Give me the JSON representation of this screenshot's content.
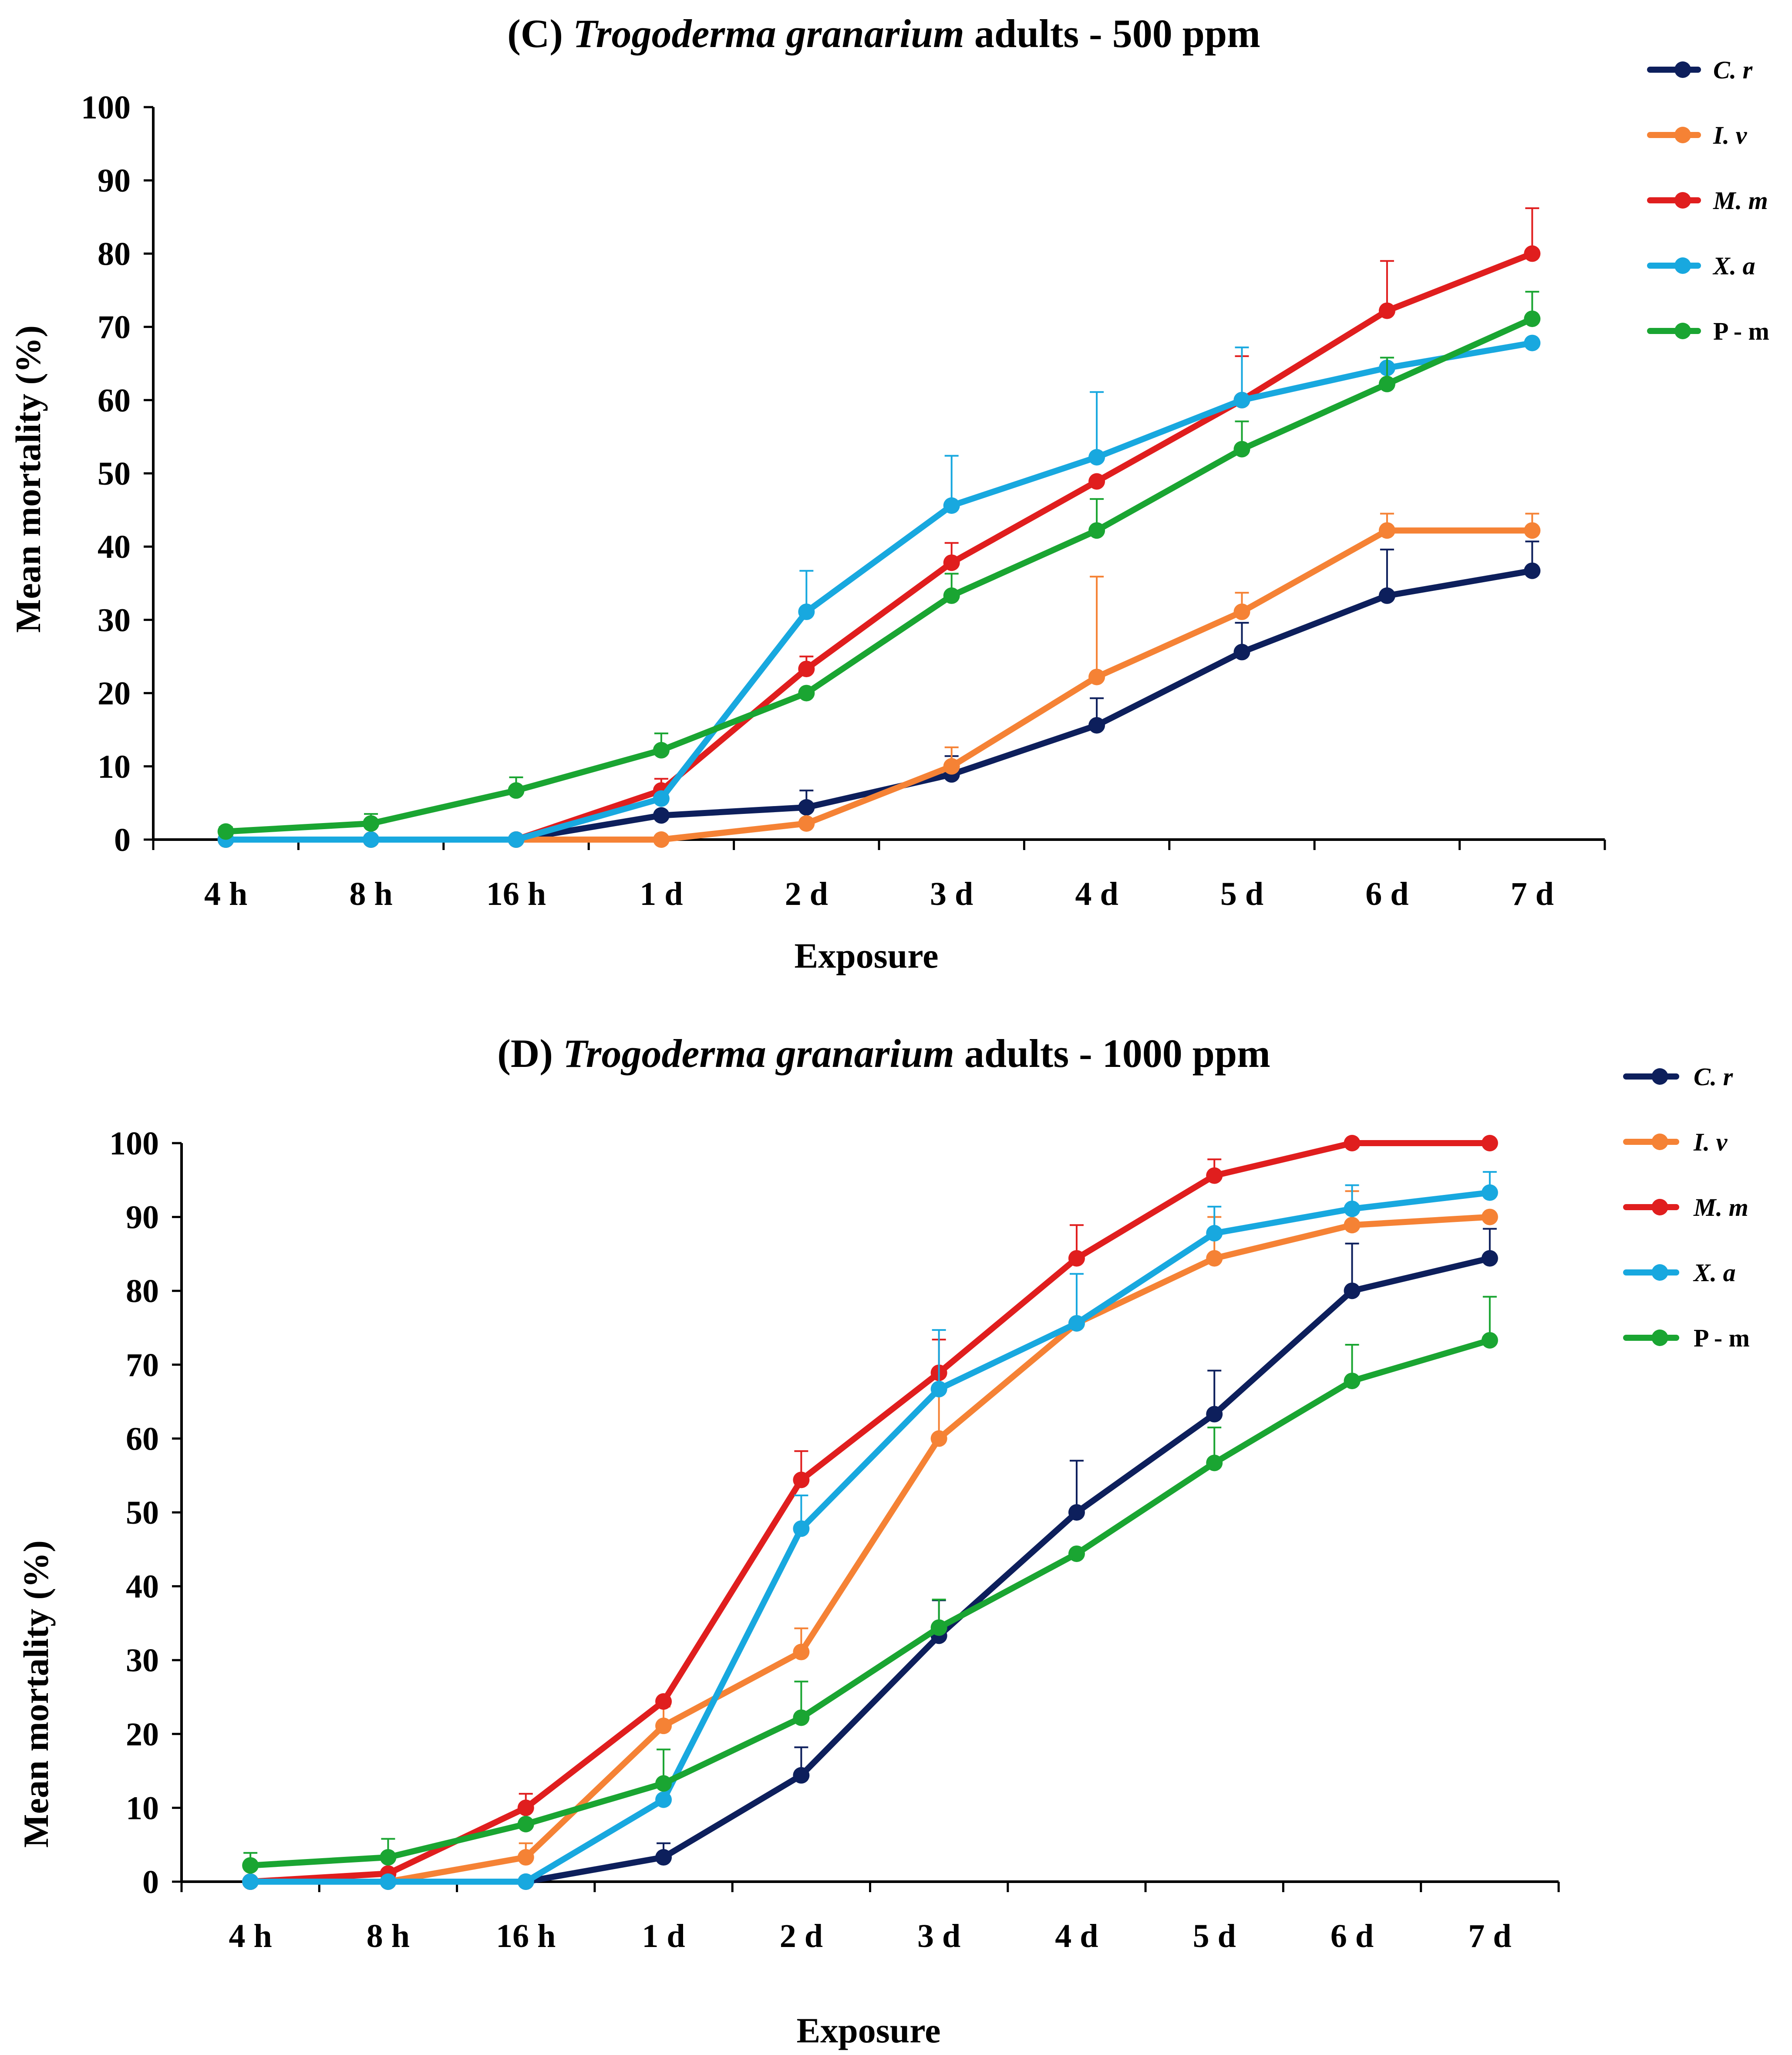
{
  "chart_data": [
    {
      "type": "line",
      "title_prefix": "(C) ",
      "title_species": "Trogoderma granarium",
      "title_suffix": " adults - 500 ppm",
      "xlabel": "Exposure",
      "ylabel": "Mean mortality (%)",
      "ylim": [
        0,
        100
      ],
      "yticks": [
        0,
        10,
        20,
        30,
        40,
        50,
        60,
        70,
        80,
        90,
        100
      ],
      "categories": [
        "4 h",
        "8 h",
        "16 h",
        "1 d",
        "2 d",
        "3 d",
        "4 d",
        "5 d",
        "6 d",
        "7 d"
      ],
      "series": [
        {
          "name": "C. r",
          "italic": true,
          "color": "#0d1f5c",
          "values": [
            0,
            0,
            0,
            3.3,
            4.4,
            8.9,
            15.6,
            25.6,
            33.3,
            36.7
          ],
          "errors": [
            0,
            0,
            0,
            0,
            2.3,
            2.5,
            3.7,
            4.0,
            6.3,
            4.0
          ]
        },
        {
          "name": "I. v",
          "italic": true,
          "color": "#f58235",
          "values": [
            0,
            0,
            0,
            0,
            2.2,
            10.0,
            22.2,
            31.1,
            42.2,
            42.2
          ],
          "errors": [
            0,
            0,
            0,
            0,
            0,
            2.6,
            13.7,
            2.6,
            2.3,
            2.3
          ]
        },
        {
          "name": "M. m",
          "italic": true,
          "color": "#e01e1e",
          "values": [
            0,
            0,
            0,
            6.7,
            23.3,
            37.8,
            48.9,
            60.0,
            72.2,
            80.0
          ],
          "errors": [
            0,
            0,
            0,
            1.6,
            1.7,
            2.7,
            0,
            6.0,
            6.8,
            6.2
          ]
        },
        {
          "name": "X. a",
          "italic": true,
          "color": "#18a8df",
          "values": [
            0,
            0,
            0,
            5.6,
            31.1,
            45.6,
            52.2,
            60.0,
            64.4,
            67.8
          ],
          "errors": [
            0,
            0,
            0,
            0,
            5.6,
            6.8,
            8.9,
            7.2,
            0,
            0
          ]
        },
        {
          "name": "P - m",
          "italic": false,
          "color": "#1aa532",
          "values": [
            1.1,
            2.2,
            6.7,
            12.2,
            20.0,
            33.3,
            42.2,
            53.3,
            62.2,
            71.1
          ],
          "errors": [
            0.6,
            1.3,
            1.8,
            2.3,
            0,
            3.0,
            4.3,
            3.8,
            3.6,
            3.7
          ]
        }
      ]
    },
    {
      "type": "line",
      "title_prefix": "(D) ",
      "title_species": "Trogoderma granarium",
      "title_suffix": " adults - 1000 ppm",
      "xlabel": "Exposure",
      "ylabel": "Mean mortality (%)",
      "ylim": [
        0,
        100
      ],
      "yticks": [
        0,
        10,
        20,
        30,
        40,
        50,
        60,
        70,
        80,
        90,
        100
      ],
      "categories": [
        "4 h",
        "8 h",
        "16 h",
        "1 d",
        "2 d",
        "3 d",
        "4 d",
        "5 d",
        "6 d",
        "7 d"
      ],
      "series": [
        {
          "name": "C. r",
          "italic": true,
          "color": "#0d1f5c",
          "values": [
            0,
            0,
            0,
            3.3,
            14.4,
            33.3,
            50.0,
            63.3,
            80.0,
            84.4
          ],
          "errors": [
            0,
            0,
            0,
            1.9,
            3.8,
            4.8,
            7.0,
            5.9,
            6.4,
            4.0
          ]
        },
        {
          "name": "I. v",
          "italic": true,
          "color": "#f58235",
          "values": [
            0,
            0,
            3.3,
            21.1,
            31.1,
            60.0,
            75.6,
            84.4,
            88.9,
            90.0
          ],
          "errors": [
            0,
            0,
            1.9,
            2.6,
            3.2,
            6.3,
            0,
            5.6,
            4.6,
            0
          ]
        },
        {
          "name": "M. m",
          "italic": true,
          "color": "#e01e1e",
          "values": [
            0,
            1.1,
            10.0,
            24.4,
            54.4,
            68.9,
            84.4,
            95.6,
            100,
            100
          ],
          "errors": [
            0,
            0.5,
            1.9,
            0,
            3.9,
            4.5,
            4.5,
            2.2,
            0,
            0
          ]
        },
        {
          "name": "X. a",
          "italic": true,
          "color": "#18a8df",
          "values": [
            0,
            0,
            0,
            11.1,
            47.8,
            66.7,
            75.6,
            87.8,
            91.1,
            93.3
          ],
          "errors": [
            0,
            0,
            0,
            0,
            4.5,
            8.0,
            6.7,
            3.6,
            3.2,
            2.8
          ]
        },
        {
          "name": "P - m",
          "italic": false,
          "color": "#1aa532",
          "values": [
            2.2,
            3.3,
            7.8,
            13.3,
            22.2,
            34.4,
            44.4,
            56.7,
            67.8,
            73.3
          ],
          "errors": [
            1.7,
            2.5,
            0,
            4.6,
            4.9,
            3.8,
            0,
            4.8,
            4.9,
            5.9
          ]
        }
      ]
    }
  ]
}
